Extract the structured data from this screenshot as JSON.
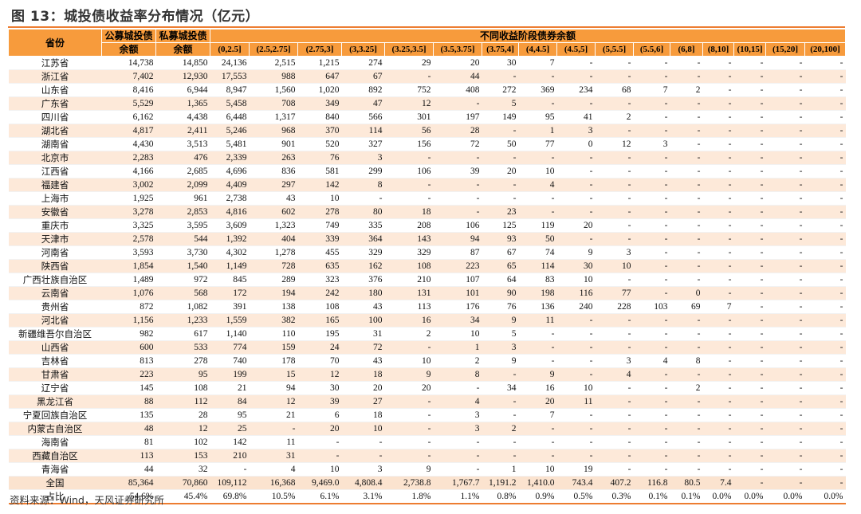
{
  "title": "图 13：城投债收益率分布情况（亿元）",
  "source": "资料来源：Wind，天风证券研究所",
  "colors": {
    "header": "#F79B3C",
    "band": "#FDE9D9",
    "rule": "#ED7D31"
  },
  "headers": {
    "province": "省份",
    "public_l1": "公募城投债",
    "public_l2": "余额",
    "private_l1": "私募城投债",
    "private_l2": "余额",
    "group": "不同收益阶段债券余额",
    "brackets": [
      "(0,2.5]",
      "(2.5,2.75]",
      "(2.75,3]",
      "(3,3.25]",
      "(3.25,3.5]",
      "(3.5,3.75]",
      "(3.75,4]",
      "(4,4.5]",
      "(4.5,5]",
      "(5,5.5]",
      "(5.5,6]",
      "(6,8]",
      "(8,10]",
      "(10,15]",
      "(15,20]",
      "(20,100]"
    ]
  },
  "rows": [
    [
      "江苏省",
      "14,738",
      "14,850",
      "24,136",
      "2,515",
      "1,215",
      "274",
      "29",
      "20",
      "30",
      "7",
      "-",
      "-",
      "-",
      "-",
      "-",
      "-",
      "-",
      "-"
    ],
    [
      "浙江省",
      "7,402",
      "12,930",
      "17,553",
      "988",
      "647",
      "67",
      "-",
      "44",
      "-",
      "-",
      "-",
      "-",
      "-",
      "-",
      "-",
      "-",
      "-",
      "-"
    ],
    [
      "山东省",
      "8,416",
      "6,944",
      "8,947",
      "1,560",
      "1,020",
      "892",
      "752",
      "408",
      "272",
      "369",
      "234",
      "68",
      "7",
      "2",
      "-",
      "-",
      "-",
      "-"
    ],
    [
      "广东省",
      "5,529",
      "1,365",
      "5,458",
      "708",
      "349",
      "47",
      "12",
      "-",
      "5",
      "-",
      "-",
      "-",
      "-",
      "-",
      "-",
      "-",
      "-",
      "-"
    ],
    [
      "四川省",
      "6,162",
      "4,438",
      "6,448",
      "1,317",
      "840",
      "566",
      "301",
      "197",
      "149",
      "95",
      "41",
      "2",
      "-",
      "-",
      "-",
      "-",
      "-",
      "-"
    ],
    [
      "湖北省",
      "4,817",
      "2,411",
      "5,246",
      "968",
      "370",
      "114",
      "56",
      "28",
      "-",
      "1",
      "3",
      "-",
      "-",
      "-",
      "-",
      "-",
      "-",
      "-"
    ],
    [
      "湖南省",
      "4,430",
      "3,513",
      "5,481",
      "901",
      "520",
      "327",
      "156",
      "72",
      "50",
      "77",
      "0",
      "12",
      "3",
      "-",
      "-",
      "-",
      "-",
      "-"
    ],
    [
      "北京市",
      "2,283",
      "476",
      "2,339",
      "263",
      "76",
      "3",
      "-",
      "-",
      "-",
      "-",
      "-",
      "-",
      "-",
      "-",
      "-",
      "-",
      "-",
      "-"
    ],
    [
      "江西省",
      "4,166",
      "2,685",
      "4,696",
      "836",
      "581",
      "299",
      "106",
      "39",
      "20",
      "10",
      "-",
      "-",
      "-",
      "-",
      "-",
      "-",
      "-",
      "-"
    ],
    [
      "福建省",
      "3,002",
      "2,099",
      "4,409",
      "297",
      "142",
      "8",
      "-",
      "-",
      "-",
      "4",
      "-",
      "-",
      "-",
      "-",
      "-",
      "-",
      "-",
      "-"
    ],
    [
      "上海市",
      "1,925",
      "961",
      "2,738",
      "43",
      "10",
      "-",
      "-",
      "-",
      "-",
      "-",
      "-",
      "-",
      "-",
      "-",
      "-",
      "-",
      "-",
      "-"
    ],
    [
      "安徽省",
      "3,278",
      "2,853",
      "4,816",
      "602",
      "278",
      "80",
      "18",
      "-",
      "23",
      "-",
      "-",
      "-",
      "-",
      "-",
      "-",
      "-",
      "-",
      "-"
    ],
    [
      "重庆市",
      "3,325",
      "3,595",
      "3,609",
      "1,323",
      "749",
      "335",
      "208",
      "106",
      "125",
      "119",
      "20",
      "-",
      "-",
      "-",
      "-",
      "-",
      "-",
      "-"
    ],
    [
      "天津市",
      "2,578",
      "544",
      "1,392",
      "404",
      "339",
      "364",
      "143",
      "94",
      "93",
      "50",
      "-",
      "-",
      "-",
      "-",
      "-",
      "-",
      "-",
      "-"
    ],
    [
      "河南省",
      "3,593",
      "3,730",
      "4,302",
      "1,278",
      "455",
      "329",
      "329",
      "87",
      "67",
      "74",
      "9",
      "3",
      "-",
      "-",
      "-",
      "-",
      "-",
      "-"
    ],
    [
      "陕西省",
      "1,854",
      "1,540",
      "1,149",
      "728",
      "635",
      "162",
      "108",
      "223",
      "65",
      "114",
      "30",
      "10",
      "-",
      "-",
      "-",
      "-",
      "-",
      "-"
    ],
    [
      "广西壮族自治区",
      "1,489",
      "972",
      "845",
      "289",
      "323",
      "376",
      "210",
      "107",
      "64",
      "83",
      "10",
      "-",
      "-",
      "-",
      "-",
      "-",
      "-",
      "-"
    ],
    [
      "云南省",
      "1,076",
      "568",
      "172",
      "194",
      "242",
      "180",
      "131",
      "101",
      "90",
      "198",
      "116",
      "77",
      "-",
      "0",
      "-",
      "-",
      "-",
      "-"
    ],
    [
      "贵州省",
      "872",
      "1,082",
      "391",
      "138",
      "108",
      "43",
      "113",
      "176",
      "76",
      "136",
      "240",
      "228",
      "103",
      "69",
      "7",
      "-",
      "-",
      "-"
    ],
    [
      "河北省",
      "1,156",
      "1,233",
      "1,559",
      "382",
      "165",
      "100",
      "16",
      "34",
      "9",
      "11",
      "-",
      "-",
      "-",
      "-",
      "-",
      "-",
      "-",
      "-"
    ],
    [
      "新疆维吾尔自治区",
      "982",
      "617",
      "1,140",
      "110",
      "195",
      "31",
      "2",
      "10",
      "5",
      "-",
      "-",
      "-",
      "-",
      "-",
      "-",
      "-",
      "-",
      "-"
    ],
    [
      "山西省",
      "600",
      "533",
      "774",
      "159",
      "24",
      "72",
      "-",
      "1",
      "3",
      "-",
      "-",
      "-",
      "-",
      "-",
      "-",
      "-",
      "-",
      "-"
    ],
    [
      "吉林省",
      "813",
      "278",
      "740",
      "178",
      "70",
      "43",
      "10",
      "2",
      "9",
      "-",
      "-",
      "3",
      "4",
      "8",
      "-",
      "-",
      "-",
      "-"
    ],
    [
      "甘肃省",
      "223",
      "95",
      "199",
      "15",
      "12",
      "18",
      "9",
      "8",
      "-",
      "9",
      "-",
      "4",
      "-",
      "-",
      "-",
      "-",
      "-",
      "-"
    ],
    [
      "辽宁省",
      "145",
      "108",
      "21",
      "94",
      "30",
      "20",
      "20",
      "-",
      "34",
      "16",
      "10",
      "-",
      "-",
      "2",
      "-",
      "-",
      "-",
      "-"
    ],
    [
      "黑龙江省",
      "88",
      "112",
      "84",
      "12",
      "39",
      "27",
      "-",
      "4",
      "-",
      "20",
      "11",
      "-",
      "-",
      "-",
      "-",
      "-",
      "-",
      "-"
    ],
    [
      "宁夏回族自治区",
      "135",
      "28",
      "95",
      "21",
      "6",
      "18",
      "-",
      "3",
      "-",
      "7",
      "-",
      "-",
      "-",
      "-",
      "-",
      "-",
      "-",
      "-"
    ],
    [
      "内蒙古自治区",
      "48",
      "12",
      "25",
      "-",
      "20",
      "10",
      "-",
      "3",
      "2",
      "-",
      "-",
      "-",
      "-",
      "-",
      "-",
      "-",
      "-",
      "-"
    ],
    [
      "海南省",
      "81",
      "102",
      "142",
      "11",
      "-",
      "-",
      "-",
      "-",
      "-",
      "-",
      "-",
      "-",
      "-",
      "-",
      "-",
      "-",
      "-",
      "-"
    ],
    [
      "西藏自治区",
      "113",
      "153",
      "210",
      "31",
      "-",
      "-",
      "-",
      "-",
      "-",
      "-",
      "-",
      "-",
      "-",
      "-",
      "-",
      "-",
      "-",
      "-"
    ],
    [
      "青海省",
      "44",
      "32",
      "-",
      "4",
      "10",
      "3",
      "9",
      "-",
      "1",
      "10",
      "19",
      "-",
      "-",
      "-",
      "-",
      "-",
      "-",
      "-"
    ]
  ],
  "total": [
    "全国",
    "85,364",
    "70,860",
    "109,112",
    "16,368",
    "9,469.0",
    "4,808.4",
    "2,738.8",
    "1,767.7",
    "1,191.2",
    "1,410.0",
    "743.4",
    "407.2",
    "116.8",
    "80.5",
    "7.4",
    "-",
    "-",
    "-"
  ],
  "share": [
    "占比",
    "54.6%",
    "45.4%",
    "69.8%",
    "10.5%",
    "6.1%",
    "3.1%",
    "1.8%",
    "1.1%",
    "0.8%",
    "0.9%",
    "0.5%",
    "0.3%",
    "0.1%",
    "0.1%",
    "0.0%",
    "0.0%",
    "0.0%",
    "0.0%"
  ]
}
